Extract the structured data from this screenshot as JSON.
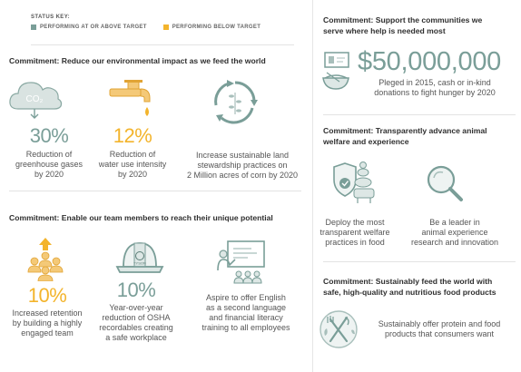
{
  "status_key": {
    "title": "STATUS KEY:",
    "items": [
      {
        "label": "PERFORMING AT OR ABOVE TARGET",
        "color": "#7a9e98"
      },
      {
        "label": "PERFORMING BELOW TARGET",
        "color": "#f3b42c"
      }
    ]
  },
  "environment": {
    "heading": "Commitment: Reduce our environmental impact as we feed the world",
    "items": [
      {
        "icon": "cloud-co2-icon",
        "cloud_text": "CO₂",
        "value": "30%",
        "desc": [
          "Reduction of",
          "greenhouse gases",
          "by 2020"
        ]
      },
      {
        "icon": "faucet-icon",
        "value": "12%",
        "desc": [
          "Reduction of",
          "water use intensity",
          "by 2020"
        ]
      },
      {
        "icon": "recycle-plant-icon",
        "value": "",
        "desc": [
          "Increase sustainable land",
          "stewardship practices on",
          "2 Million acres of corn by 2020"
        ]
      }
    ]
  },
  "team": {
    "heading": "Commitment: Enable our team members to reach their unique potential",
    "items": [
      {
        "icon": "people-arrow-icon",
        "value": "10%",
        "desc": [
          "Increased retention",
          "by building a highly",
          "engaged team"
        ]
      },
      {
        "icon": "hard-hat-icon",
        "hat_text": "TYSON",
        "value": "10%",
        "desc": [
          "Year-over-year",
          "reduction of OSHA",
          "recordables creating",
          "a safe workplace"
        ]
      },
      {
        "icon": "teacher-icon",
        "value": "",
        "desc": [
          "Aspire to offer English",
          "as a second language",
          "and financial literacy",
          "training to all employees"
        ]
      }
    ]
  },
  "communities": {
    "heading": [
      "Commitment: Support the communities we",
      "serve where help is needed most"
    ],
    "amount": "$50,000,000",
    "desc": [
      "Pleged in 2015, cash or in-kind",
      "donations to fight hunger by 2020"
    ]
  },
  "animal_welfare": {
    "heading": [
      "Commitment: Transparently advance animal",
      "welfare and experience"
    ],
    "items": [
      {
        "icon": "animals-shield-icon",
        "desc": [
          "Deploy the most",
          "transparent welfare",
          "practices in food"
        ]
      },
      {
        "icon": "magnifier-icon",
        "desc": [
          "Be a leader in",
          "animal experience",
          "research and innovation"
        ]
      }
    ]
  },
  "food": {
    "heading": [
      "Commitment: Sustainably feed the world with",
      "safe, high-quality and nutritious food products"
    ],
    "icon": "fork-knife-icon",
    "desc": [
      "Sustainably offer protein and food",
      "products that consumers want"
    ]
  }
}
